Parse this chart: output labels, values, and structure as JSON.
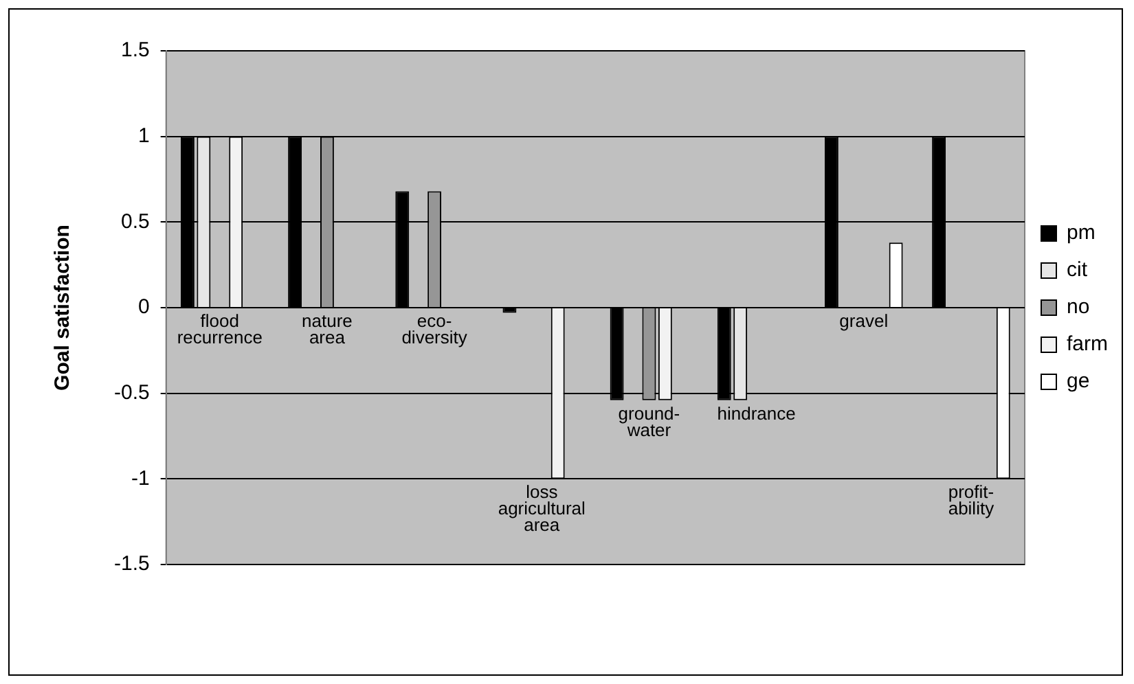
{
  "chart_data": {
    "type": "bar",
    "ylabel": "Goal satisfaction",
    "categories": [
      "flood\nrecurrence",
      "nature\narea",
      "eco-\ndiversity",
      "loss\nagricultural\narea",
      "ground-\nwater",
      "hindrance",
      "gravel",
      "profit-\nability"
    ],
    "series": [
      {
        "name": "pm",
        "color": "#000000",
        "values": [
          1,
          1,
          0.68,
          -0.03,
          -0.54,
          -0.54,
          1,
          1
        ]
      },
      {
        "name": "cit",
        "color": "#e6e6e6",
        "values": [
          1,
          null,
          null,
          null,
          null,
          -0.54,
          null,
          null
        ]
      },
      {
        "name": "no",
        "color": "#969696",
        "values": [
          null,
          1,
          0.68,
          null,
          -0.54,
          null,
          null,
          null
        ]
      },
      {
        "name": "farm",
        "color": "#f2f2f2",
        "values": [
          1,
          null,
          null,
          -1,
          -0.54,
          null,
          null,
          null
        ]
      },
      {
        "name": "ge",
        "color": "#ffffff",
        "values": [
          null,
          null,
          null,
          null,
          null,
          null,
          0.38,
          -1
        ]
      }
    ],
    "ylim": [
      -1.5,
      1.5
    ],
    "yticks": [
      -1.5,
      -1,
      -0.5,
      0,
      0.5,
      1,
      1.5
    ],
    "grid": "y",
    "legend": "right"
  }
}
